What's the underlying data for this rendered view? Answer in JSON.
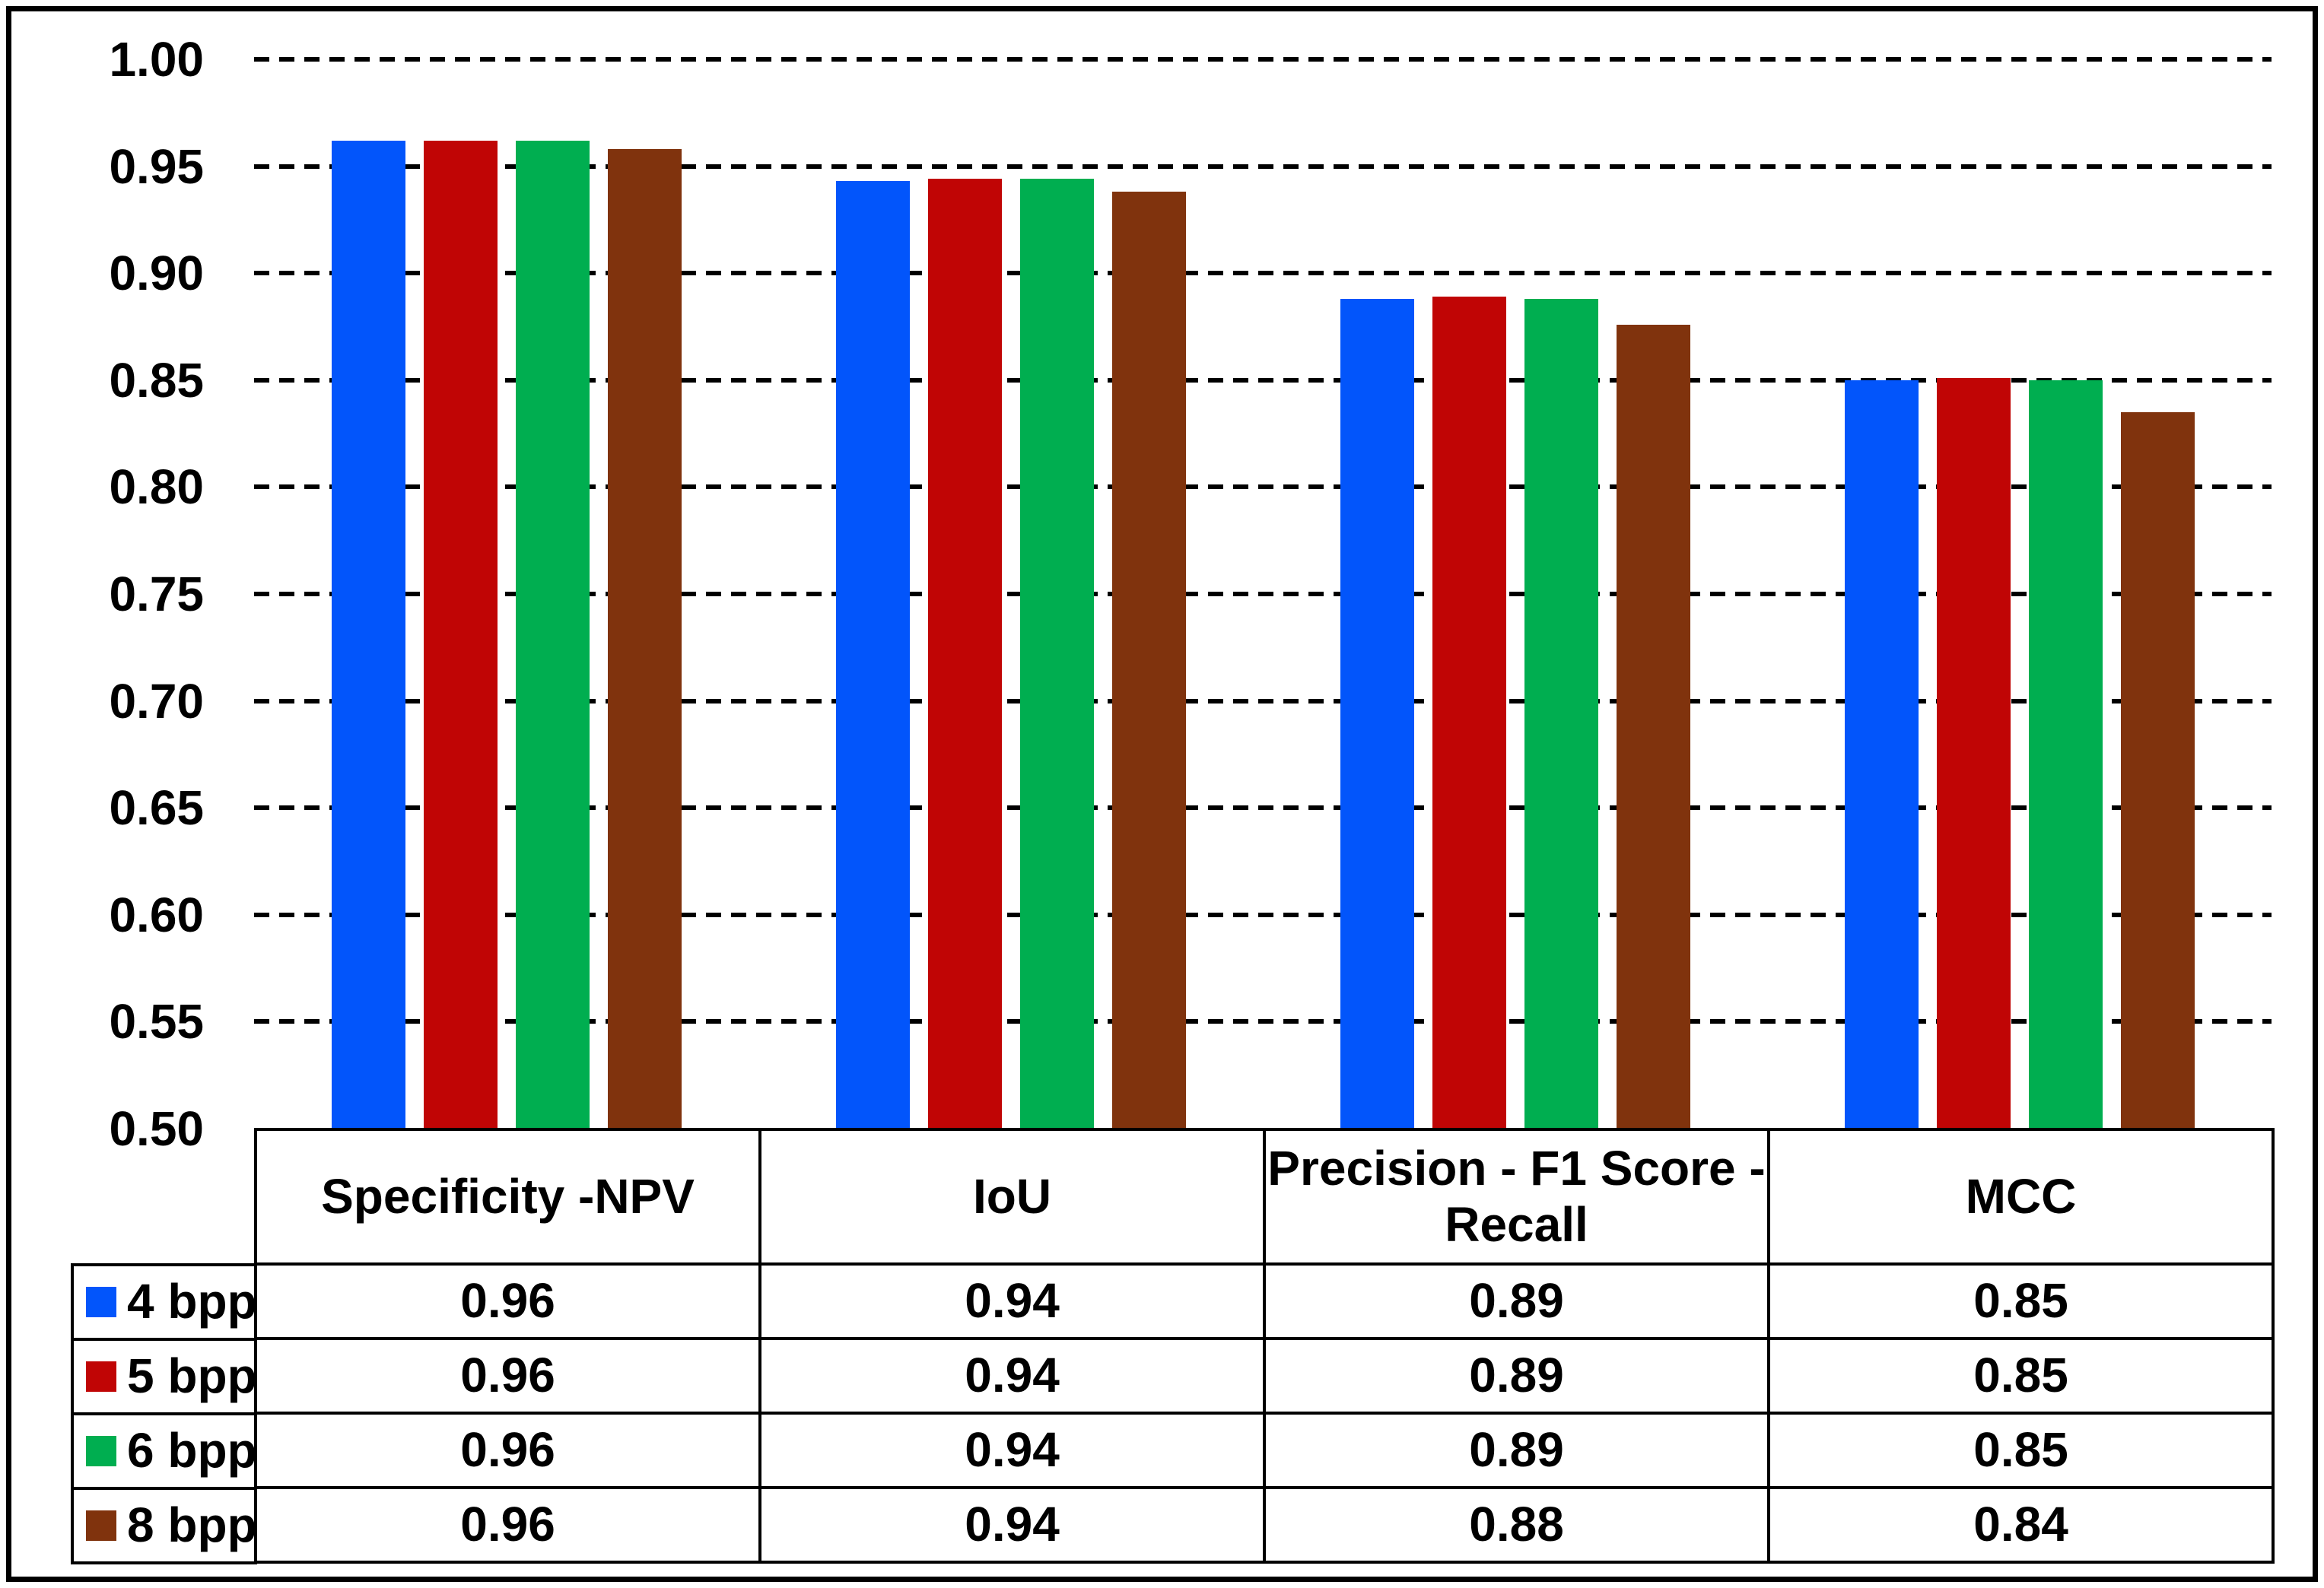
{
  "chart_data": {
    "type": "bar",
    "title": "",
    "xlabel": "",
    "ylabel": "",
    "grid": "horizontal-dashed",
    "legend_position": "data-table-left-column",
    "y_axis": {
      "min": 0.5,
      "max": 1.0,
      "step": 0.05,
      "tick_labels": [
        "1.00",
        "0.95",
        "0.90",
        "0.85",
        "0.80",
        "0.75",
        "0.70",
        "0.65",
        "0.60",
        "0.55",
        "0.50"
      ]
    },
    "categories": [
      "Specificity -NPV",
      "IoU",
      "Precision - F1 Score -\nRecall",
      "MCC"
    ],
    "series": [
      {
        "name": "4 bpp",
        "color": "#0255FB",
        "bar_values": [
          0.962,
          0.943,
          0.888,
          0.85
        ],
        "table_values": [
          "0.96",
          "0.94",
          "0.89",
          "0.85"
        ]
      },
      {
        "name": "5 bpp",
        "color": "#C00505",
        "bar_values": [
          0.962,
          0.944,
          0.889,
          0.851
        ],
        "table_values": [
          "0.96",
          "0.94",
          "0.89",
          "0.85"
        ]
      },
      {
        "name": "6 bpp",
        "color": "#00AE50",
        "bar_values": [
          0.962,
          0.944,
          0.888,
          0.85
        ],
        "table_values": [
          "0.96",
          "0.94",
          "0.89",
          "0.85"
        ]
      },
      {
        "name": "8 bpp",
        "color": "#80330D",
        "bar_values": [
          0.958,
          0.938,
          0.876,
          0.835
        ],
        "table_values": [
          "0.96",
          "0.94",
          "0.88",
          "0.84"
        ]
      }
    ],
    "colors": {
      "grid": "#000000",
      "frame": "#000000",
      "background": "#FFFFFF"
    }
  }
}
